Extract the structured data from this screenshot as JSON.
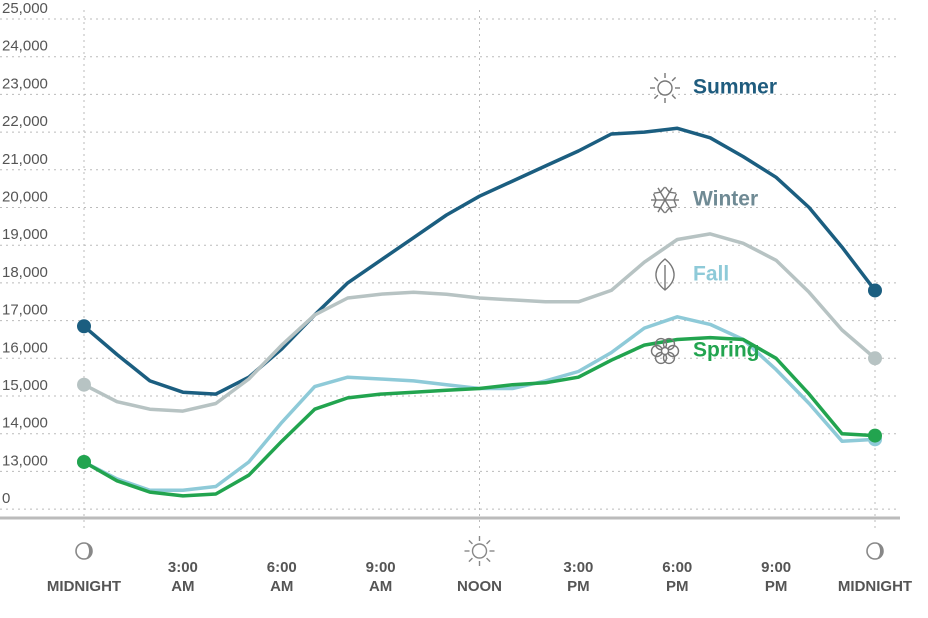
{
  "chart_data": {
    "type": "line",
    "x": [
      0,
      1,
      2,
      3,
      4,
      5,
      6,
      7,
      8,
      9,
      10,
      11,
      12,
      13,
      14,
      15,
      16,
      17,
      18,
      19,
      20,
      21,
      22,
      23,
      24
    ],
    "xlim": [
      0,
      24
    ],
    "xticks": [
      {
        "value": 0,
        "label": [
          "MIDNIGHT"
        ],
        "icon": "moon"
      },
      {
        "value": 3,
        "label": [
          "3:00",
          "AM"
        ]
      },
      {
        "value": 6,
        "label": [
          "6:00",
          "AM"
        ]
      },
      {
        "value": 9,
        "label": [
          "9:00",
          "AM"
        ]
      },
      {
        "value": 12,
        "label": [
          "NOON"
        ],
        "icon": "sun"
      },
      {
        "value": 15,
        "label": [
          "3:00",
          "PM"
        ]
      },
      {
        "value": 18,
        "label": [
          "6:00",
          "PM"
        ]
      },
      {
        "value": 21,
        "label": [
          "9:00",
          "PM"
        ]
      },
      {
        "value": 24,
        "label": [
          "MIDNIGHT"
        ],
        "icon": "moon"
      }
    ],
    "ylim": [
      0,
      25000
    ],
    "axis_break": [
      0,
      12000
    ],
    "yticks": [
      {
        "value": 0,
        "label": "0"
      },
      {
        "value": 13000,
        "label": "13,000"
      },
      {
        "value": 14000,
        "label": "14,000"
      },
      {
        "value": 15000,
        "label": "15,000"
      },
      {
        "value": 16000,
        "label": "16,000"
      },
      {
        "value": 17000,
        "label": "17,000"
      },
      {
        "value": 18000,
        "label": "18,000"
      },
      {
        "value": 19000,
        "label": "19,000"
      },
      {
        "value": 20000,
        "label": "20,000"
      },
      {
        "value": 21000,
        "label": "21,000"
      },
      {
        "value": 22000,
        "label": "22,000"
      },
      {
        "value": 23000,
        "label": "23,000"
      },
      {
        "value": 24000,
        "label": "24,000"
      },
      {
        "value": 25000,
        "label": "25,000"
      }
    ],
    "grid": true,
    "series": [
      {
        "name": "Summer",
        "color": "#1b5e80",
        "label_color": "#1f5c7e",
        "icon": "sun",
        "values": [
          16850,
          16100,
          15400,
          15100,
          15050,
          15500,
          16250,
          17150,
          18000,
          18600,
          19200,
          19800,
          20300,
          20700,
          21100,
          21500,
          21950,
          22000,
          22100,
          21850,
          21350,
          20800,
          20000,
          18950,
          17800
        ]
      },
      {
        "name": "Winter",
        "color": "#b7c3c3",
        "label_color": "#6f8a94",
        "icon": "snowflake",
        "values": [
          15300,
          14850,
          14650,
          14600,
          14800,
          15450,
          16350,
          17150,
          17600,
          17700,
          17750,
          17700,
          17600,
          17550,
          17500,
          17500,
          17800,
          18550,
          19150,
          19300,
          19050,
          18600,
          17750,
          16750,
          16000
        ]
      },
      {
        "name": "Fall",
        "color": "#8ecad8",
        "label_color": "#8ecad8",
        "icon": "leaf",
        "values": [
          13250,
          12800,
          12500,
          12500,
          12600,
          13250,
          14300,
          15250,
          15500,
          15450,
          15400,
          15300,
          15200,
          15200,
          15400,
          15650,
          16150,
          16800,
          17100,
          16900,
          16500,
          15700,
          14800,
          13800,
          13850
        ]
      },
      {
        "name": "Spring",
        "color": "#22a44f",
        "label_color": "#22a44f",
        "icon": "flower",
        "values": [
          13250,
          12750,
          12450,
          12350,
          12400,
          12900,
          13800,
          14650,
          14950,
          15050,
          15100,
          15150,
          15200,
          15300,
          15350,
          15500,
          15950,
          16350,
          16500,
          16550,
          16500,
          16000,
          15050,
          14000,
          13950
        ]
      }
    ]
  }
}
